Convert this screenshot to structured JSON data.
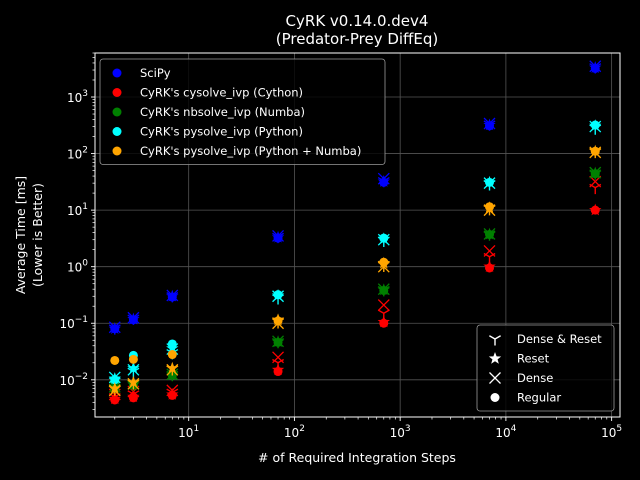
{
  "chart_data": {
    "type": "scatter",
    "title": "CyRK v0.14.0.dev4",
    "subtitle": "(Predator-Prey DiffEq)",
    "xlabel": "# of Required Integration Steps",
    "ylabel": "Average Time [ms]",
    "ylabel2": "(Lower is Better)",
    "x_scale": "log",
    "y_scale": "log",
    "xlim": [
      1.3,
      120000
    ],
    "ylim": [
      0.0022,
      6000
    ],
    "x_ticks": [
      10,
      100,
      1000,
      10000,
      100000
    ],
    "x_tick_labels": [
      "10^1",
      "10^2",
      "10^3",
      "10^4",
      "10^5"
    ],
    "y_ticks": [
      0.01,
      0.1,
      1,
      10,
      100,
      1000
    ],
    "y_tick_labels": [
      "10^-2",
      "10^-1",
      "10^0",
      "10^1",
      "10^2",
      "10^3"
    ],
    "grid": true,
    "background": "#000000",
    "x": [
      2,
      3,
      7,
      70,
      700,
      7000,
      70000
    ],
    "series": [
      {
        "name": "SciPy",
        "color": "#0000ff",
        "regular": [
          0.08,
          0.115,
          0.29,
          3.2,
          31,
          310,
          3200
        ],
        "dense": [
          0.085,
          0.125,
          0.31,
          3.5,
          36,
          340,
          3500
        ],
        "reset": [
          0.08,
          0.118,
          0.3,
          3.3,
          32,
          320,
          3300
        ],
        "dense_reset": [
          0.082,
          0.122,
          0.305,
          3.4,
          33,
          330,
          3400
        ]
      },
      {
        "name": "CyRK's cysolve_ivp (Cython)",
        "color": "#ff0000",
        "regular": [
          0.0044,
          0.0048,
          0.0053,
          0.014,
          0.1,
          0.95,
          10
        ],
        "dense": [
          0.0055,
          0.0062,
          0.0065,
          0.025,
          0.21,
          1.9,
          32
        ],
        "reset": [
          0.0046,
          0.005,
          0.0055,
          0.015,
          0.105,
          1.0,
          10
        ],
        "dense_reset": [
          0.005,
          0.0056,
          0.006,
          0.02,
          0.15,
          1.5,
          25
        ]
      },
      {
        "name": "CyRK's nbsolve_ivp (Numba)",
        "color": "#008000",
        "regular": [
          0.007,
          0.008,
          0.012,
          0.046,
          0.38,
          3.7,
          44
        ],
        "dense": [
          0.0075,
          0.0085,
          0.0125,
          0.048,
          0.4,
          3.8,
          46
        ],
        "reset": [
          0.0072,
          0.0082,
          0.0122,
          0.047,
          0.39,
          3.75,
          45
        ],
        "dense_reset": [
          0.0073,
          0.0083,
          0.0123,
          0.047,
          0.39,
          3.75,
          45
        ]
      },
      {
        "name": "CyRK's pysolve_ivp (Python)",
        "color": "#00ffff",
        "regular": [
          0.01,
          0.027,
          0.043,
          0.32,
          3.2,
          31,
          320
        ],
        "dense": [
          0.011,
          0.015,
          0.035,
          0.3,
          3.0,
          30,
          300
        ],
        "reset": [
          0.0105,
          0.016,
          0.036,
          0.31,
          3.1,
          31,
          310
        ],
        "dense_reset": [
          0.0095,
          0.014,
          0.03,
          0.28,
          2.9,
          29,
          280
        ]
      },
      {
        "name": "CyRK's pysolve_ivp (Python + Numba)",
        "color": "#ffa500",
        "regular": [
          0.022,
          0.023,
          0.028,
          0.11,
          1.2,
          11.5,
          110
        ],
        "dense": [
          0.0065,
          0.0085,
          0.015,
          0.1,
          1.0,
          10.0,
          105
        ],
        "reset": [
          0.007,
          0.009,
          0.016,
          0.115,
          1.15,
          11.0,
          110
        ],
        "dense_reset": [
          0.0068,
          0.0088,
          0.0155,
          0.105,
          1.05,
          10.5,
          108
        ]
      }
    ],
    "legend_series_location": "upper left",
    "legend_markers": [
      {
        "name": "Dense & Reset",
        "marker": "tri_down"
      },
      {
        "name": "Reset",
        "marker": "star"
      },
      {
        "name": "Dense",
        "marker": "x"
      },
      {
        "name": "Regular",
        "marker": "circle"
      }
    ],
    "legend_markers_location": "lower right"
  }
}
